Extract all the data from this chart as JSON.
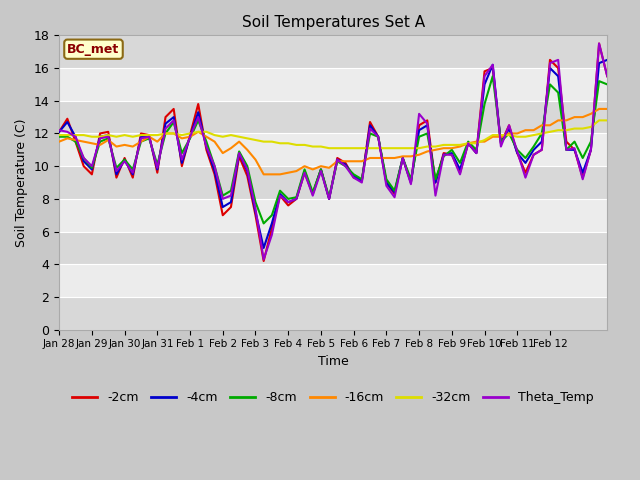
{
  "title": "Soil Temperatures Set A",
  "xlabel": "Time",
  "ylabel": "Soil Temperature (C)",
  "ylim": [
    0,
    18
  ],
  "annotation": "BC_met",
  "fig_bg": "#d8d8d8",
  "plot_bg": "#e0e0e0",
  "grid_color": "#f5f5f5",
  "series": {
    "-2cm": {
      "color": "#dd0000",
      "values": [
        12.1,
        12.9,
        11.5,
        10.0,
        9.5,
        12.0,
        12.1,
        9.3,
        10.5,
        9.3,
        12.0,
        11.9,
        9.6,
        13.0,
        13.5,
        10.0,
        11.9,
        13.8,
        11.0,
        9.5,
        7.0,
        7.5,
        10.6,
        9.4,
        7.0,
        4.2,
        6.2,
        8.2,
        7.6,
        8.0,
        9.6,
        8.3,
        9.8,
        8.0,
        10.5,
        10.2,
        9.3,
        9.1,
        12.7,
        11.8,
        9.0,
        8.3,
        10.5,
        9.0,
        12.5,
        12.8,
        9.0,
        10.8,
        10.7,
        9.6,
        11.4,
        10.8,
        15.8,
        16.0,
        11.4,
        12.5,
        10.8,
        9.6,
        10.7,
        11.0,
        16.5,
        16.0,
        11.5,
        11.0,
        9.3,
        11.0,
        17.5,
        15.5
      ]
    },
    "-4cm": {
      "color": "#0000cc",
      "values": [
        12.1,
        12.7,
        11.8,
        10.3,
        9.8,
        11.8,
        11.9,
        9.5,
        10.4,
        9.5,
        11.8,
        11.8,
        9.8,
        12.6,
        13.0,
        10.2,
        11.8,
        13.3,
        11.2,
        9.7,
        7.5,
        7.8,
        10.8,
        9.7,
        7.2,
        5.0,
        6.5,
        8.3,
        7.8,
        8.0,
        9.7,
        8.3,
        9.8,
        8.0,
        10.4,
        10.1,
        9.4,
        9.1,
        12.5,
        11.8,
        9.0,
        8.4,
        10.5,
        9.0,
        12.2,
        12.5,
        9.0,
        10.7,
        10.8,
        9.8,
        11.4,
        10.8,
        15.0,
        16.2,
        11.4,
        12.3,
        10.8,
        10.2,
        11.0,
        11.5,
        16.0,
        15.5,
        11.0,
        11.0,
        9.6,
        11.0,
        16.3,
        16.5
      ]
    },
    "-8cm": {
      "color": "#00aa00",
      "values": [
        11.8,
        11.8,
        11.5,
        10.5,
        9.9,
        11.5,
        11.7,
        9.9,
        10.4,
        9.8,
        11.5,
        11.7,
        10.1,
        12.0,
        12.7,
        10.8,
        11.7,
        12.8,
        11.5,
        10.0,
        8.2,
        8.5,
        10.9,
        10.0,
        7.8,
        6.5,
        7.0,
        8.5,
        8.0,
        8.1,
        9.8,
        8.4,
        9.8,
        8.1,
        10.3,
        10.0,
        9.5,
        9.2,
        12.0,
        11.8,
        9.2,
        8.5,
        10.5,
        9.2,
        11.8,
        12.0,
        9.2,
        10.6,
        11.0,
        10.2,
        11.5,
        11.0,
        13.8,
        15.5,
        11.5,
        12.0,
        11.0,
        10.5,
        11.2,
        12.0,
        15.0,
        14.5,
        11.0,
        11.5,
        10.5,
        11.5,
        15.2,
        15.0
      ]
    },
    "-16cm": {
      "color": "#ff8800",
      "values": [
        11.5,
        11.7,
        11.6,
        11.5,
        11.4,
        11.3,
        11.6,
        11.2,
        11.3,
        11.2,
        11.5,
        11.8,
        11.5,
        12.0,
        12.0,
        11.7,
        11.8,
        12.1,
        11.8,
        11.5,
        10.8,
        11.1,
        11.5,
        11.0,
        10.4,
        9.5,
        9.5,
        9.5,
        9.6,
        9.7,
        10.0,
        9.8,
        10.0,
        9.9,
        10.3,
        10.3,
        10.3,
        10.3,
        10.5,
        10.5,
        10.5,
        10.5,
        10.6,
        10.6,
        10.7,
        10.9,
        11.0,
        11.1,
        11.1,
        11.2,
        11.4,
        11.5,
        11.5,
        11.8,
        11.8,
        12.0,
        12.0,
        12.2,
        12.2,
        12.5,
        12.5,
        12.8,
        12.8,
        13.0,
        13.0,
        13.2,
        13.5,
        13.5
      ]
    },
    "-32cm": {
      "color": "#dddd00",
      "values": [
        11.9,
        11.9,
        11.9,
        11.9,
        11.8,
        11.8,
        11.9,
        11.8,
        11.9,
        11.8,
        11.9,
        11.9,
        11.9,
        12.0,
        12.0,
        11.9,
        12.0,
        12.1,
        12.1,
        11.9,
        11.8,
        11.9,
        11.8,
        11.7,
        11.6,
        11.5,
        11.5,
        11.4,
        11.4,
        11.3,
        11.3,
        11.2,
        11.2,
        11.1,
        11.1,
        11.1,
        11.1,
        11.1,
        11.1,
        11.1,
        11.1,
        11.1,
        11.1,
        11.1,
        11.1,
        11.2,
        11.2,
        11.3,
        11.3,
        11.3,
        11.4,
        11.4,
        11.6,
        11.9,
        11.9,
        11.9,
        11.8,
        11.8,
        11.9,
        12.0,
        12.1,
        12.2,
        12.2,
        12.3,
        12.3,
        12.4,
        12.8,
        12.8
      ]
    },
    "Theta_Temp": {
      "color": "#9900cc",
      "values": [
        12.2,
        12.1,
        11.8,
        10.5,
        10.0,
        11.7,
        11.8,
        9.7,
        10.3,
        9.6,
        11.7,
        11.8,
        9.9,
        12.3,
        12.8,
        10.4,
        11.8,
        13.0,
        11.2,
        10.0,
        8.0,
        8.2,
        10.8,
        9.8,
        7.4,
        4.3,
        5.8,
        8.2,
        7.8,
        8.0,
        9.6,
        8.2,
        9.7,
        8.0,
        10.4,
        10.0,
        9.3,
        9.0,
        12.3,
        11.8,
        8.8,
        8.1,
        10.5,
        8.9,
        13.2,
        12.6,
        8.2,
        10.7,
        10.7,
        9.5,
        11.4,
        10.8,
        15.5,
        16.2,
        11.2,
        12.5,
        10.9,
        9.3,
        10.7,
        11.0,
        16.3,
        16.5,
        11.0,
        11.1,
        9.2,
        11.0,
        17.5,
        15.5
      ]
    }
  },
  "xtick_labels": [
    "Jan 28",
    "Jan 29",
    "Jan 30",
    "Jan 31",
    "Feb 1",
    "Feb 2",
    "Feb 3",
    "Feb 4",
    "Feb 5",
    "Feb 6",
    "Feb 7",
    "Feb 8",
    "Feb 9",
    "Feb 10",
    "Feb 11",
    "Feb 12"
  ],
  "xtick_positions": [
    0,
    4,
    8,
    12,
    16,
    20,
    24,
    28,
    32,
    36,
    40,
    44,
    48,
    52,
    56,
    60
  ],
  "legend_labels": [
    "-2cm",
    "-4cm",
    "-8cm",
    "-16cm",
    "-32cm",
    "Theta_Temp"
  ],
  "legend_colors": [
    "#dd0000",
    "#0000cc",
    "#00aa00",
    "#ff8800",
    "#dddd00",
    "#9900cc"
  ]
}
